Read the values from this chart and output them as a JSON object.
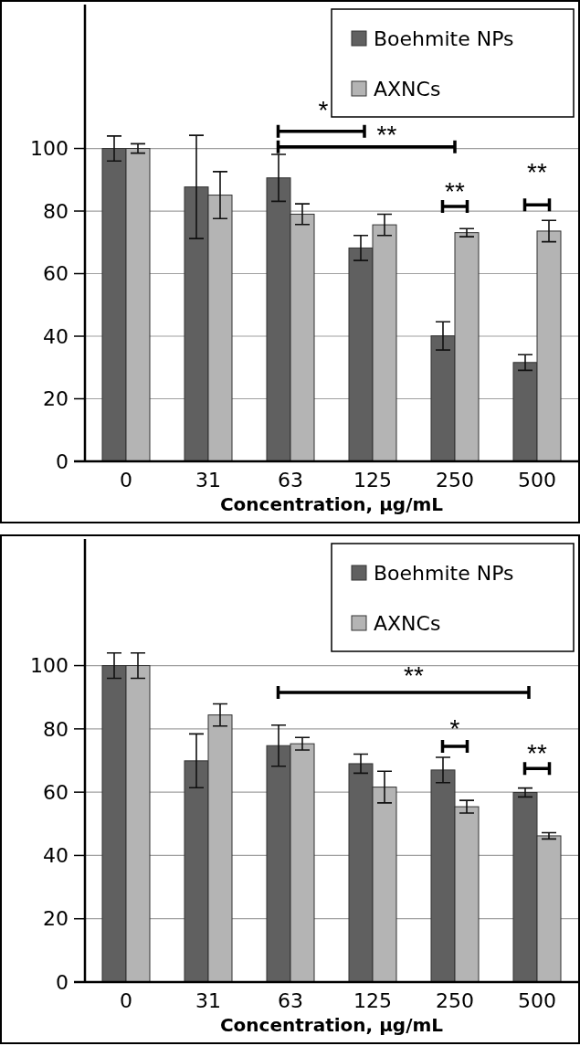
{
  "chart_data": [
    {
      "type": "bar",
      "xlabel": "Concentration, µg/mL",
      "categories": [
        "0",
        "31",
        "63",
        "125",
        "250",
        "500"
      ],
      "series": [
        {
          "name": "Boehmite NPs",
          "color": "#606060",
          "values": [
            100,
            87.7,
            90.6,
            68.2,
            40.1,
            31.6
          ],
          "errors": [
            4,
            16.5,
            7.5,
            4,
            4.5,
            2.5
          ]
        },
        {
          "name": "AXNCs",
          "color": "#b4b4b4",
          "values": [
            100,
            85.1,
            79,
            75.6,
            73.1,
            73.6
          ],
          "errors": [
            1.5,
            7.5,
            3.3,
            3.4,
            1.3,
            3.4
          ]
        }
      ],
      "ylim": [
        0,
        146
      ],
      "yticks": [
        0,
        20,
        40,
        60,
        80,
        100
      ],
      "grid": "y",
      "legend": "top right",
      "annotations": [
        "*",
        "**",
        "**",
        "**"
      ]
    },
    {
      "type": "bar",
      "xlabel": "Concentration, µg/mL",
      "categories": [
        "0",
        "31",
        "63",
        "125",
        "250",
        "500"
      ],
      "series": [
        {
          "name": "Boehmite NPs",
          "color": "#606060",
          "values": [
            100,
            69.9,
            74.7,
            69,
            67,
            59.9
          ],
          "errors": [
            4,
            8.5,
            6.5,
            3,
            4,
            1.4
          ]
        },
        {
          "name": "AXNCs",
          "color": "#b4b4b4",
          "values": [
            100,
            84.4,
            75.3,
            61.6,
            55.4,
            46.2
          ],
          "errors": [
            4,
            3.5,
            2,
            5,
            2,
            1
          ]
        }
      ],
      "ylim": [
        0,
        140
      ],
      "yticks": [
        0,
        20,
        40,
        60,
        80,
        100
      ],
      "grid": "y",
      "legend": "top right",
      "annotations": [
        "**",
        "*",
        "**"
      ]
    }
  ]
}
